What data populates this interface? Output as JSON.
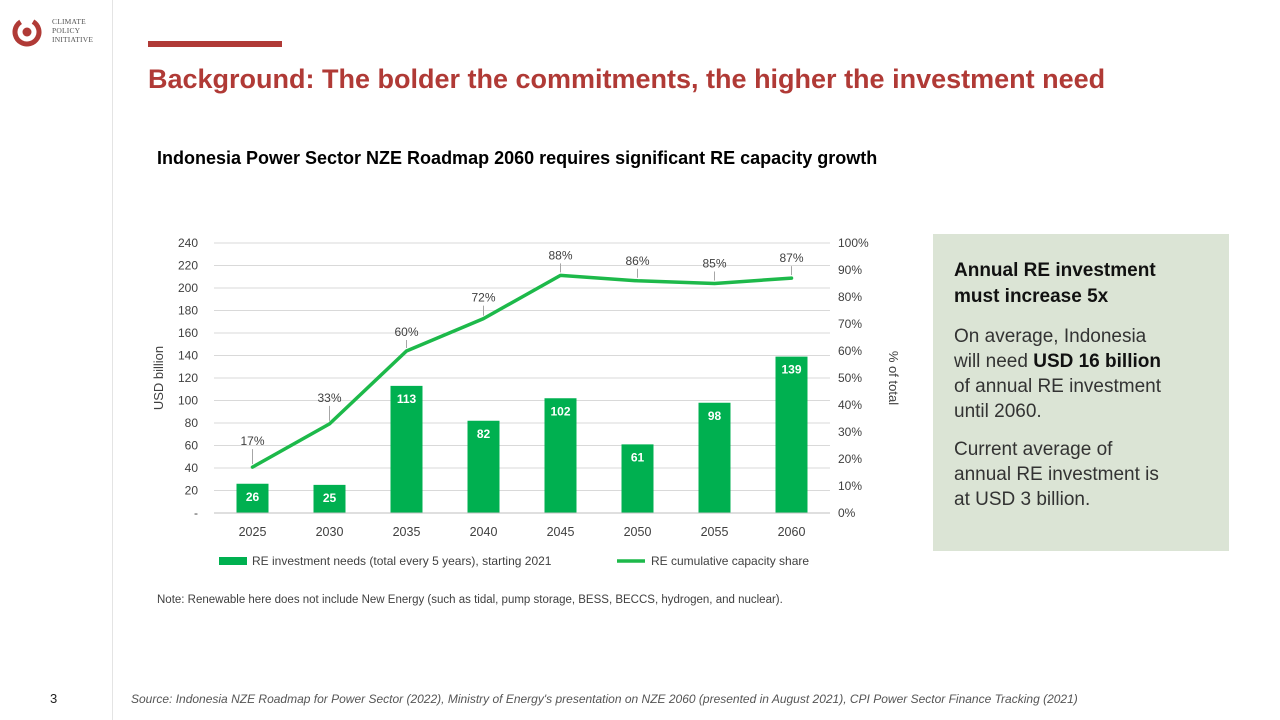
{
  "logo": {
    "line1": "CLIMATE",
    "line2": "POLICY",
    "line3": "INITIATIVE"
  },
  "title": "Background: The bolder the commitments, the higher the investment need",
  "subtitle": "Indonesia Power Sector NZE Roadmap 2060 requires significant RE capacity growth",
  "note": "Note: Renewable here does not include New Energy  (such as tidal, pump storage, BESS, BECCS, hydrogen, and nuclear).",
  "callout": {
    "heading_line1": "Annual RE investment",
    "heading_line2": "must increase  5x",
    "p1_line1": "On average, Indonesia",
    "p1_line2_pre": "will need ",
    "p1_line2_bold": "USD 16 billion",
    "p1_line3": "of annual RE investment",
    "p1_line4": "until 2060.",
    "p2_line1": "Current average of",
    "p2_line2": "annual RE investment is",
    "p2_line3": "at USD 3 billion."
  },
  "page_number": "3",
  "source": "Source: Indonesia NZE Roadmap for Power Sector (2022),  Ministry of Energy's presentation on NZE 2060 (presented  in August 2021),  CPI Power Sector Finance Tracking (2021)",
  "colors": {
    "accent": "#b03a36",
    "bar": "#00b050",
    "line": "#1db94a",
    "callout_bg": "#dbe4d5"
  },
  "chart_data": {
    "type": "bar",
    "categories": [
      "2025",
      "2030",
      "2035",
      "2040",
      "2045",
      "2050",
      "2055",
      "2060"
    ],
    "series": [
      {
        "name": "RE investment needs (total every 5 years), starting 2021",
        "type": "bar",
        "axis": "left",
        "values": [
          26,
          25,
          113,
          82,
          102,
          61,
          98,
          139
        ],
        "labels": [
          "26",
          "25",
          "113",
          "82",
          "102",
          "61",
          "98",
          "139"
        ]
      },
      {
        "name": "RE cumulative capacity share",
        "type": "line",
        "axis": "right",
        "values": [
          17,
          33,
          60,
          72,
          88,
          86,
          85,
          87
        ],
        "labels": [
          "17%",
          "33%",
          "60%",
          "72%",
          "88%",
          "86%",
          "85%",
          "87%"
        ]
      }
    ],
    "ylabel": "USD billion",
    "ylabel_right": "% of total",
    "ylim": [
      0,
      240
    ],
    "ylim_right": [
      0,
      100
    ],
    "yticks": [
      "-",
      "20",
      "40",
      "60",
      "80",
      "100",
      "120",
      "140",
      "160",
      "180",
      "200",
      "220",
      "240"
    ],
    "yticks_right": [
      "0%",
      "10%",
      "20%",
      "30%",
      "40%",
      "50%",
      "60%",
      "70%",
      "80%",
      "90%",
      "100%"
    ],
    "grid": true,
    "legend_position": "bottom"
  }
}
